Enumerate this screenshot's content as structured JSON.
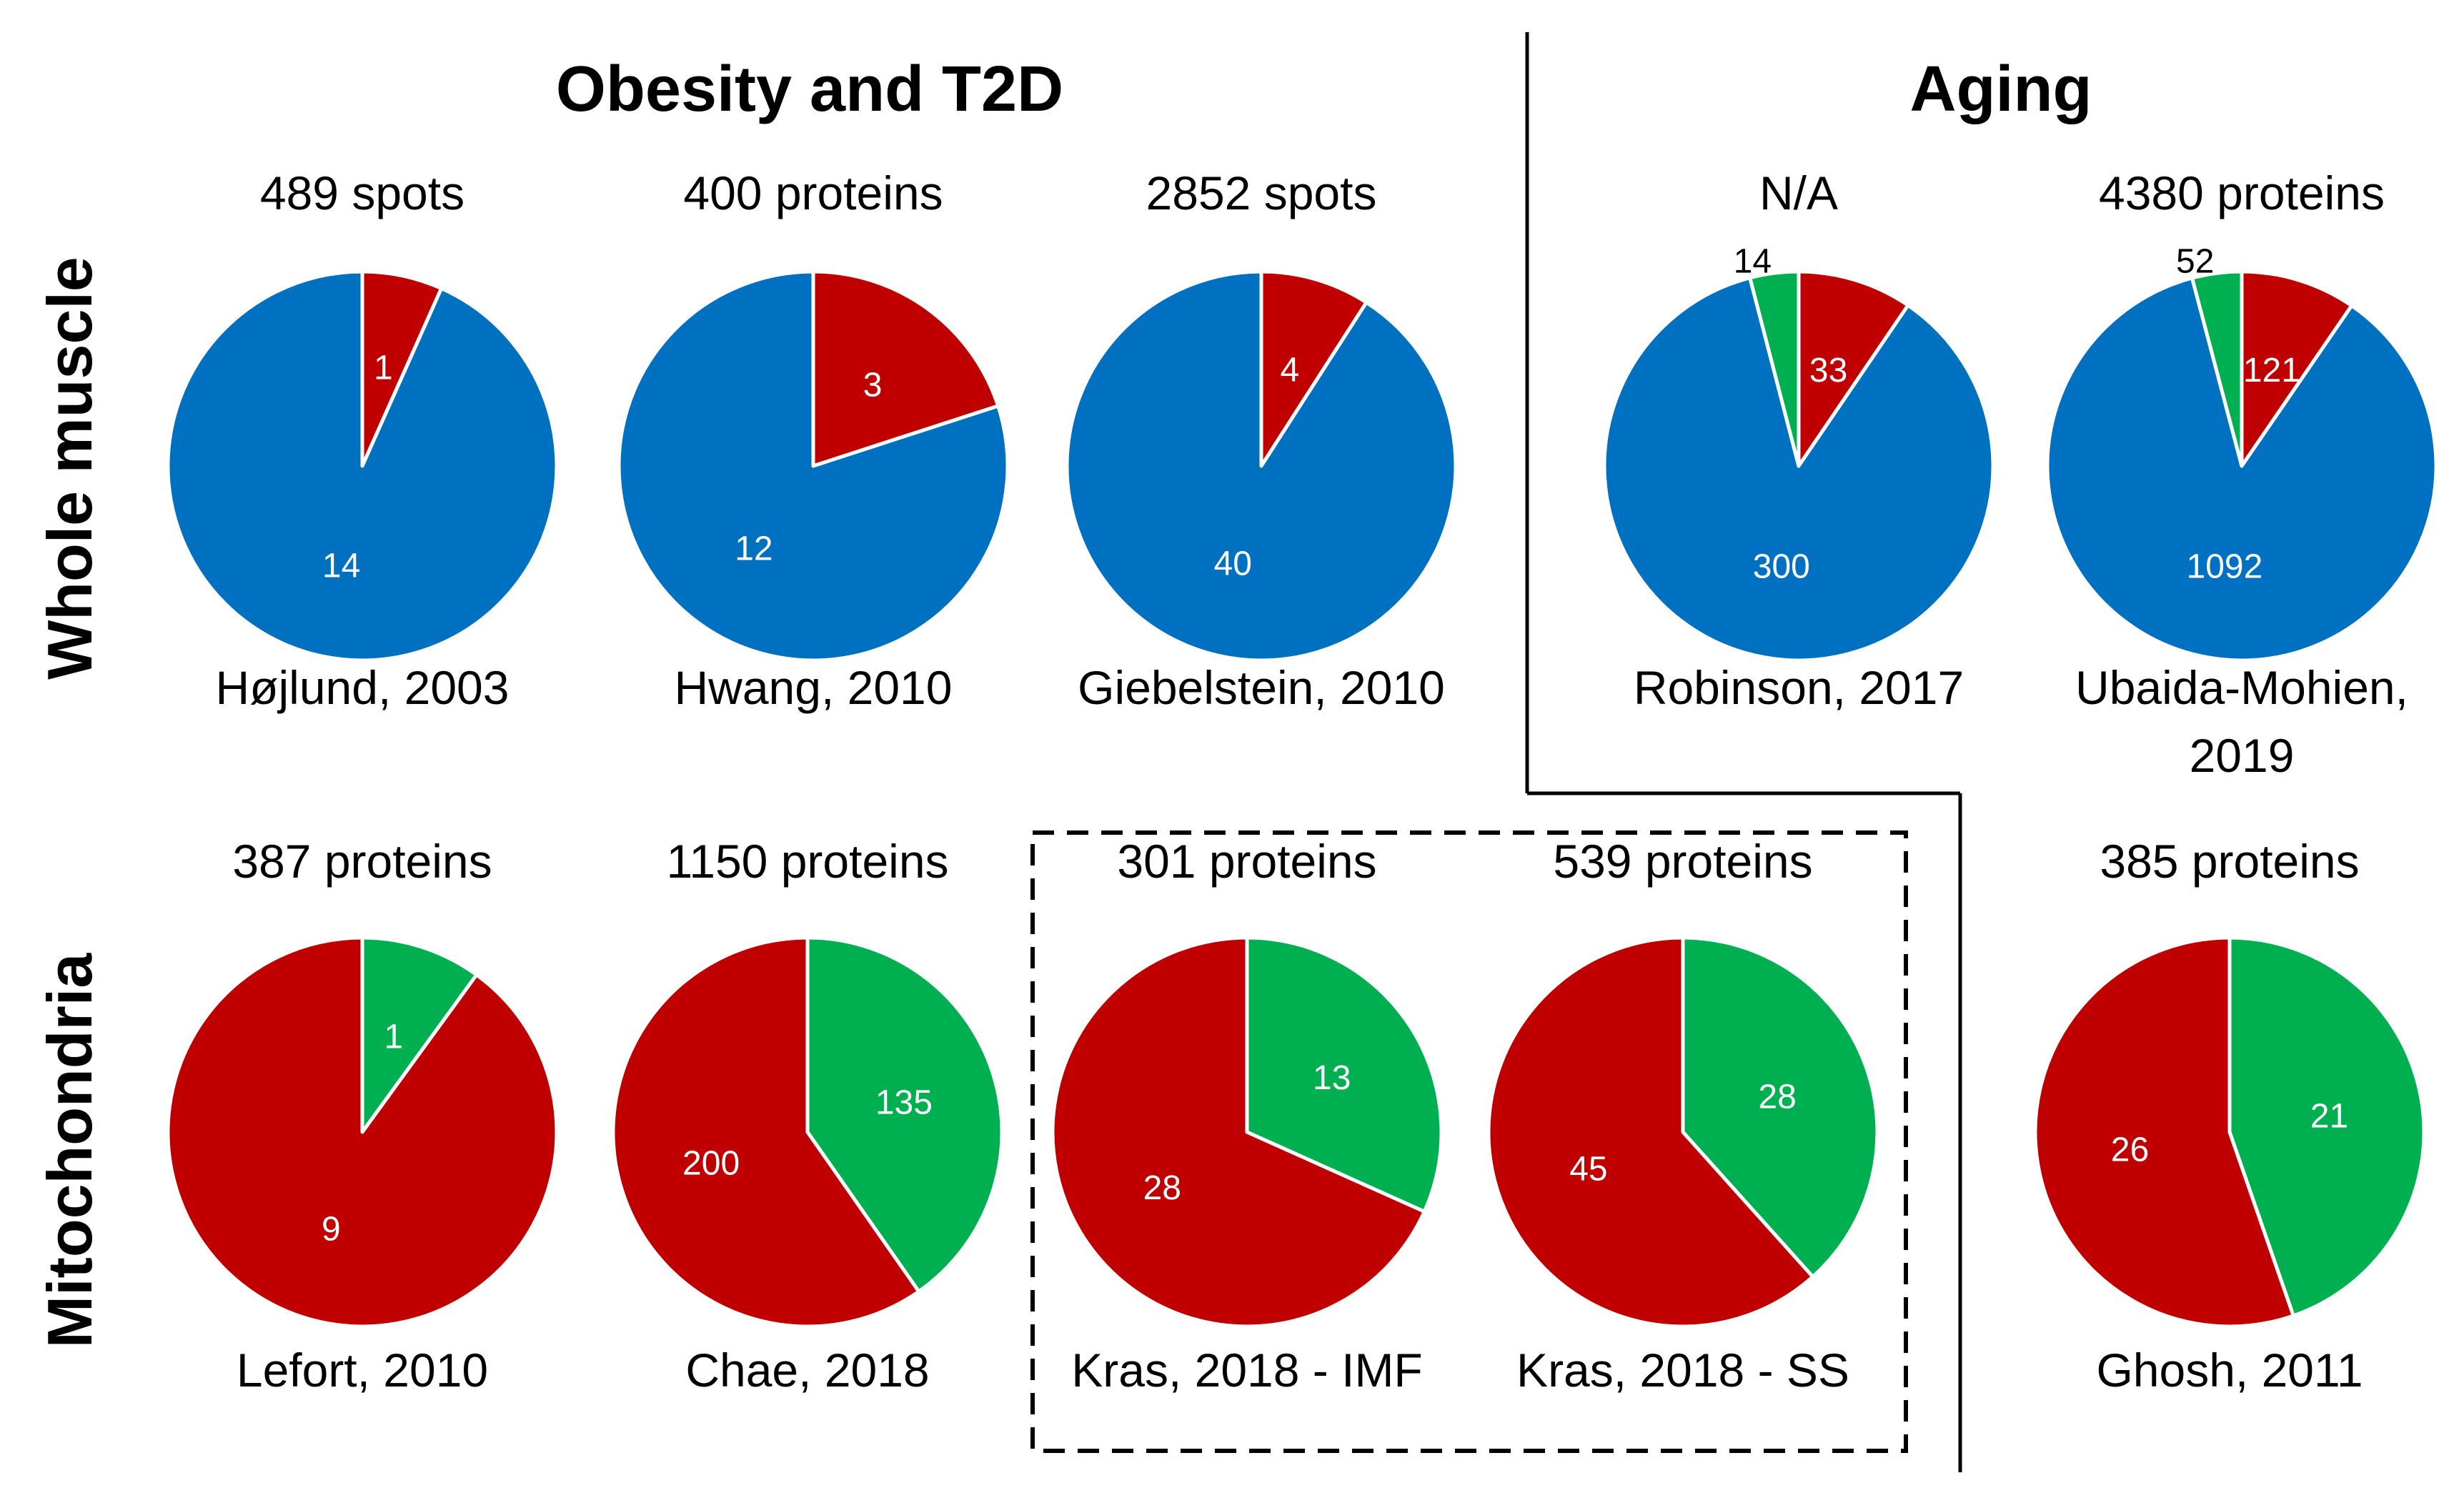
{
  "headers": {
    "obesity": "Obesity and T2D",
    "aging": "Aging"
  },
  "row_labels": {
    "whole_muscle": "Whole muscle",
    "mitochondria": "Mitochondria"
  },
  "colors": {
    "blue": "#0070C0",
    "red": "#C00000",
    "green": "#00B050",
    "text_light": "#ffffff",
    "text_dark": "#000000"
  },
  "chart_data": [
    {
      "type": "pie",
      "group": "Obesity and T2D",
      "row": "Whole muscle",
      "title": "489 spots",
      "caption": [
        "Højlund, 2003"
      ],
      "series": [
        {
          "name": "red",
          "value": 1,
          "label": "1"
        },
        {
          "name": "blue",
          "value": 14,
          "label": "14"
        }
      ]
    },
    {
      "type": "pie",
      "group": "Obesity and T2D",
      "row": "Whole muscle",
      "title": "400 proteins",
      "caption": [
        "Hwang, 2010"
      ],
      "series": [
        {
          "name": "red",
          "value": 3,
          "label": "3"
        },
        {
          "name": "blue",
          "value": 12,
          "label": "12"
        }
      ]
    },
    {
      "type": "pie",
      "group": "Obesity and T2D",
      "row": "Whole muscle",
      "title": "2852 spots",
      "caption": [
        "Giebelstein, 2010"
      ],
      "series": [
        {
          "name": "red",
          "value": 4,
          "label": "4"
        },
        {
          "name": "blue",
          "value": 40,
          "label": "40"
        }
      ]
    },
    {
      "type": "pie",
      "group": "Aging",
      "row": "Whole muscle",
      "title": "N/A",
      "caption": [
        "Robinson, 2017"
      ],
      "series": [
        {
          "name": "red",
          "value": 33,
          "label": "33"
        },
        {
          "name": "blue",
          "value": 300,
          "label": "300"
        },
        {
          "name": "green",
          "value": 14,
          "label": "14"
        }
      ]
    },
    {
      "type": "pie",
      "group": "Aging",
      "row": "Whole muscle",
      "title": "4380 proteins",
      "caption": [
        "Ubaida-Mohien,",
        "2019"
      ],
      "series": [
        {
          "name": "red",
          "value": 121,
          "label": "121"
        },
        {
          "name": "blue",
          "value": 1092,
          "label": "1092"
        },
        {
          "name": "green",
          "value": 52,
          "label": "52"
        }
      ]
    },
    {
      "type": "pie",
      "group": "Obesity and T2D",
      "row": "Mitochondria",
      "title": "387 proteins",
      "caption": [
        "Lefort, 2010"
      ],
      "series": [
        {
          "name": "green",
          "value": 1,
          "label": "1"
        },
        {
          "name": "red",
          "value": 9,
          "label": "9"
        }
      ]
    },
    {
      "type": "pie",
      "group": "Obesity and T2D",
      "row": "Mitochondria",
      "title": "1150 proteins",
      "caption": [
        "Chae, 2018"
      ],
      "series": [
        {
          "name": "green",
          "value": 135,
          "label": "135"
        },
        {
          "name": "red",
          "value": 200,
          "label": "200"
        }
      ]
    },
    {
      "type": "pie",
      "group": "Obesity and T2D",
      "row": "Mitochondria",
      "title": "301 proteins",
      "caption": [
        "Kras, 2018 - IMF"
      ],
      "series": [
        {
          "name": "green",
          "value": 13,
          "label": "13"
        },
        {
          "name": "red",
          "value": 28,
          "label": "28"
        }
      ]
    },
    {
      "type": "pie",
      "group": "Obesity and T2D",
      "row": "Mitochondria",
      "title": "539 proteins",
      "caption": [
        "Kras, 2018 - SS"
      ],
      "series": [
        {
          "name": "green",
          "value": 28,
          "label": "28"
        },
        {
          "name": "red",
          "value": 45,
          "label": "45"
        }
      ]
    },
    {
      "type": "pie",
      "group": "Aging",
      "row": "Mitochondria",
      "title": "385 proteins",
      "caption": [
        "Ghosh, 2011"
      ],
      "series": [
        {
          "name": "green",
          "value": 21,
          "label": "21"
        },
        {
          "name": "red",
          "value": 26,
          "label": "26"
        }
      ]
    }
  ]
}
